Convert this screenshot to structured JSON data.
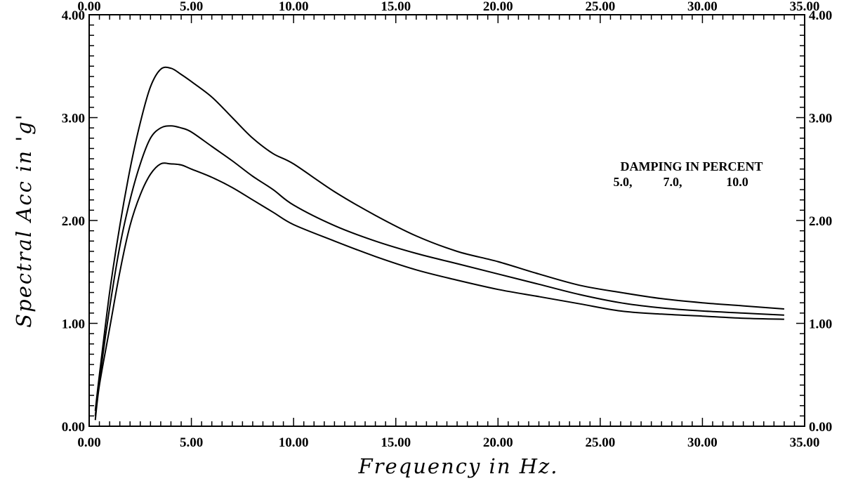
{
  "chart_data": {
    "type": "line",
    "title": "",
    "xlabel": "Frequency in Hz.",
    "ylabel": "Spectral Acc in 'g'",
    "xlim": [
      0,
      35
    ],
    "ylim": [
      0,
      4
    ],
    "x_tick_labels": [
      "0.00",
      "5.00",
      "10.00",
      "15.00",
      "20.00",
      "25.00",
      "30.00",
      "35.00"
    ],
    "y_tick_labels": [
      "0.00",
      "1.00",
      "2.00",
      "3.00",
      "4.00"
    ],
    "grid": false,
    "annotations": {
      "legend_title": "DAMPING IN PERCENT",
      "legend_values": [
        "5.0,",
        "7.0,",
        "10.0"
      ]
    },
    "series": [
      {
        "name": "5.0",
        "x": [
          0.3,
          0.5,
          1.0,
          1.5,
          2.0,
          2.5,
          3.0,
          3.5,
          4.0,
          4.5,
          5.0,
          6.0,
          7.0,
          8.0,
          9.0,
          10.0,
          12.0,
          14.0,
          16.0,
          18.0,
          20.0,
          22.0,
          24.0,
          26.0,
          28.0,
          30.0,
          32.0,
          34.0
        ],
        "values": [
          0.15,
          0.5,
          1.3,
          1.95,
          2.5,
          2.95,
          3.3,
          3.47,
          3.48,
          3.42,
          3.35,
          3.2,
          3.0,
          2.8,
          2.65,
          2.55,
          2.28,
          2.05,
          1.85,
          1.7,
          1.6,
          1.48,
          1.37,
          1.3,
          1.24,
          1.2,
          1.17,
          1.14
        ]
      },
      {
        "name": "7.0",
        "x": [
          0.3,
          0.5,
          1.0,
          1.5,
          2.0,
          2.5,
          3.0,
          3.5,
          4.0,
          4.5,
          5.0,
          6.0,
          7.0,
          8.0,
          9.0,
          10.0,
          12.0,
          14.0,
          16.0,
          18.0,
          20.0,
          22.0,
          24.0,
          26.0,
          28.0,
          30.0,
          32.0,
          34.0
        ],
        "values": [
          0.1,
          0.45,
          1.15,
          1.75,
          2.2,
          2.55,
          2.8,
          2.9,
          2.92,
          2.9,
          2.86,
          2.72,
          2.58,
          2.43,
          2.3,
          2.15,
          1.95,
          1.8,
          1.68,
          1.58,
          1.48,
          1.38,
          1.28,
          1.2,
          1.15,
          1.12,
          1.1,
          1.08
        ]
      },
      {
        "name": "10.0",
        "x": [
          0.3,
          0.5,
          1.0,
          1.5,
          2.0,
          2.5,
          3.0,
          3.5,
          4.0,
          4.5,
          5.0,
          6.0,
          7.0,
          8.0,
          9.0,
          10.0,
          12.0,
          14.0,
          16.0,
          18.0,
          20.0,
          22.0,
          24.0,
          26.0,
          28.0,
          30.0,
          32.0,
          34.0
        ],
        "values": [
          0.06,
          0.4,
          0.95,
          1.5,
          1.95,
          2.25,
          2.45,
          2.55,
          2.55,
          2.54,
          2.5,
          2.42,
          2.32,
          2.2,
          2.08,
          1.96,
          1.8,
          1.65,
          1.52,
          1.42,
          1.33,
          1.26,
          1.19,
          1.12,
          1.09,
          1.07,
          1.05,
          1.04
        ]
      }
    ]
  }
}
